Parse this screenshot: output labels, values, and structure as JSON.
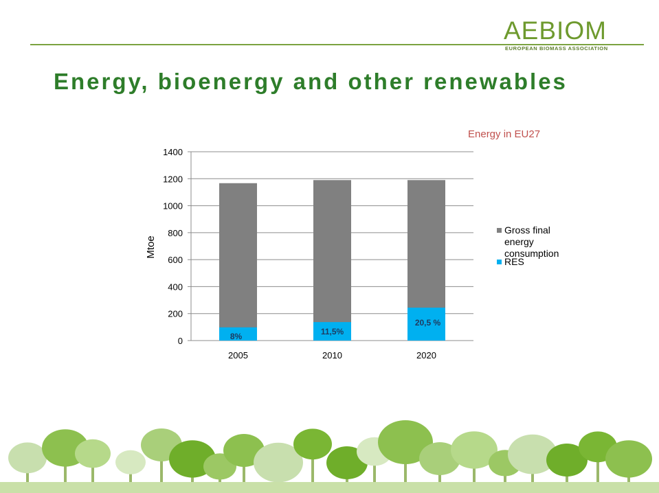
{
  "slide": {
    "title": "Energy, bioenergy and other renewables"
  },
  "logo": {
    "name": "AEBIOM",
    "tagline": "EUROPEAN BIOMASS ASSOCIATION"
  },
  "colors": {
    "title": "#2e7d2a",
    "gross": "#808080",
    "res": "#00b0f0",
    "subtitle": "#c0504d",
    "accent_green": "#7aa23f"
  },
  "chart_data": {
    "type": "bar",
    "stacked": false,
    "title": "",
    "subtitle": "Energy in EU27",
    "ylabel": "Mtoe",
    "xlabel": "",
    "ylim": [
      0,
      1400
    ],
    "yticks": [
      "0",
      "200",
      "400",
      "600",
      "800",
      "1000",
      "1200",
      "1400"
    ],
    "categories": [
      "2005",
      "2010",
      "2020"
    ],
    "grid": true,
    "legend_position": "right",
    "series": [
      {
        "name": "Gross final energy consumption",
        "color": "#808080",
        "values": [
          1167,
          1190,
          1190
        ]
      },
      {
        "name": "RES",
        "color": "#00b0f0",
        "values": [
          98,
          137,
          244
        ]
      }
    ],
    "data_labels": [
      "8%",
      "11,5%",
      "20,5 %"
    ]
  }
}
